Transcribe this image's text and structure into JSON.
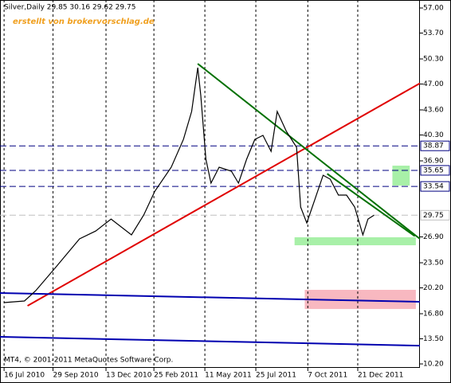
{
  "chart_data": {
    "type": "line",
    "title": "Silver,Daily  29.85 30.16 29.62 29.75",
    "subtitle": "erstellt von brokervorschlag.de",
    "footer": "MT4, © 2001-2011 MetaQuotes Software Corp.",
    "xlim": [
      -4,
      408
    ],
    "ylim": [
      9.68,
      58.05
    ],
    "xticks": [
      {
        "value": 0,
        "label": "16 Jul 2010"
      },
      {
        "value": 48,
        "label": "29 Sep 2010"
      },
      {
        "value": 100,
        "label": "13 Dec 2010"
      },
      {
        "value": 147,
        "label": "25 Feb 2011"
      },
      {
        "value": 197,
        "label": "11 May 2011"
      },
      {
        "value": 247,
        "label": "25 Jul 2011"
      },
      {
        "value": 298,
        "label": "7 Oct 2011"
      },
      {
        "value": 347,
        "label": "21 Dec 2011"
      }
    ],
    "yticks": [
      {
        "value": 57,
        "label": "57.00"
      },
      {
        "value": 53.7,
        "label": "53.70"
      },
      {
        "value": 50.3,
        "label": "50.30"
      },
      {
        "value": 47,
        "label": "47.00"
      },
      {
        "value": 43.6,
        "label": "43.60"
      },
      {
        "value": 40.3,
        "label": "40.30"
      },
      {
        "value": 36.9,
        "label": "36.90"
      },
      {
        "value": 26.9,
        "label": "26.90"
      },
      {
        "value": 23.5,
        "label": "23.50"
      },
      {
        "value": 20.2,
        "label": "20.20"
      },
      {
        "value": 16.8,
        "label": "16.80"
      },
      {
        "value": 13.5,
        "label": "13.50"
      },
      {
        "value": 10.2,
        "label": "10.20"
      }
    ],
    "grid": true,
    "series": [
      {
        "name": "Silver",
        "color": "#000000",
        "x": [
          0,
          20,
          31,
          51,
          74,
          90,
          105,
          125,
          137,
          148,
          164,
          176,
          184,
          190,
          193,
          198,
          203,
          211,
          223,
          230,
          238,
          246,
          254,
          262,
          268,
          277,
          287,
          291,
          297,
          305,
          313,
          320,
          328,
          336,
          344,
          352,
          357,
          363
        ],
        "values": [
          18.26,
          18.47,
          19.83,
          22.97,
          26.64,
          27.68,
          29.25,
          27.16,
          29.78,
          32.92,
          36.06,
          39.72,
          43.39,
          49.15,
          45.48,
          37.11,
          33.97,
          36.06,
          35.54,
          33.97,
          37.11,
          39.72,
          40.25,
          38.15,
          43.39,
          40.77,
          38.68,
          30.83,
          28.73,
          31.87,
          35.01,
          34.49,
          32.4,
          32.4,
          30.83,
          27.16,
          29.25,
          29.75
        ]
      }
    ],
    "levels": [
      {
        "value": 38.87,
        "label": "38.87",
        "color": "#000080"
      },
      {
        "value": 35.65,
        "label": "35.65",
        "color": "#000080"
      },
      {
        "value": 33.54,
        "label": "33.54",
        "color": "#000080"
      },
      {
        "value": 29.75,
        "label": "29.75",
        "color": "#c0c0c0"
      }
    ],
    "trendlines": [
      {
        "color": "#e00000",
        "x": [
          23,
          408
        ],
        "values": [
          17.84,
          47.1
        ]
      },
      {
        "color": "#007000",
        "x": [
          190,
          408
        ],
        "values": [
          49.67,
          26.64
        ]
      },
      {
        "color": "#007000",
        "x": [
          317,
          403
        ],
        "values": [
          35.2,
          27.0
        ]
      },
      {
        "color": "#0000b0",
        "x": [
          -4,
          408
        ],
        "values": [
          19.52,
          18.37
        ]
      },
      {
        "color": "#0000b0",
        "x": [
          -4,
          408
        ],
        "values": [
          13.76,
          12.6
        ]
      }
    ],
    "zones": [
      {
        "color": "#a8f0a8",
        "x": [
          285,
          404
        ],
        "values": [
          26.85,
          25.8
        ]
      },
      {
        "color": "#a8f0a8",
        "x": [
          381,
          398
        ],
        "values": [
          36.27,
          33.65
        ]
      },
      {
        "color": "#f8b8c0",
        "x": [
          295,
          404
        ],
        "values": [
          19.94,
          17.42
        ]
      }
    ]
  }
}
